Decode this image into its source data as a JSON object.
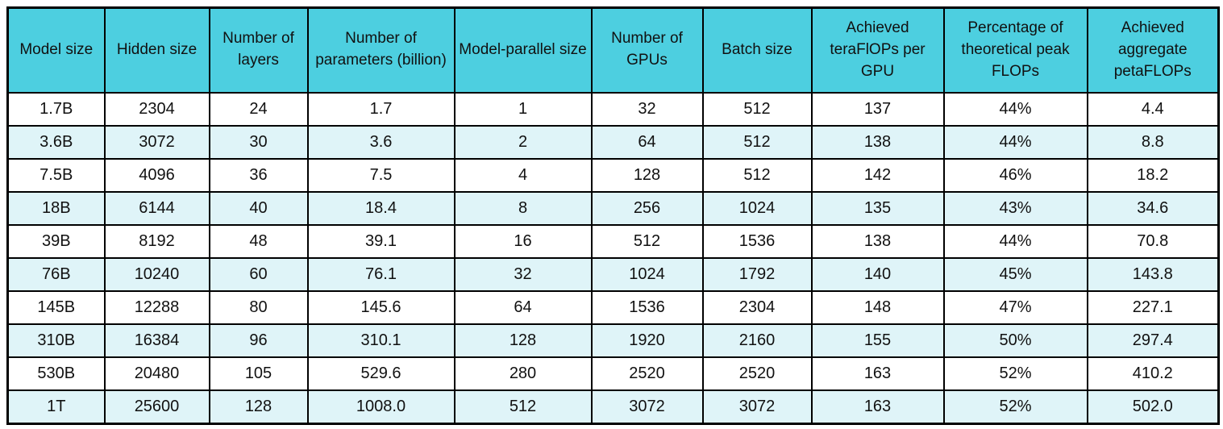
{
  "colors": {
    "header_bg": "#4DCFE0",
    "stripe_bg": "#DFF4F8",
    "row_bg": "#FFFFFF",
    "border": "#000000",
    "text": "#111111"
  },
  "chart_data": {
    "type": "table",
    "title": "",
    "columns": [
      "Model size",
      "Hidden size",
      "Number of layers",
      "Number of parameters (billion)",
      "Model-parallel size",
      "Number of GPUs",
      "Batch size",
      "Achieved teraFlOPs per GPU",
      "Percentage of theoretical peak FLOPs",
      "Achieved aggregate petaFLOPs"
    ],
    "rows": [
      [
        "1.7B",
        "2304",
        "24",
        "1.7",
        "1",
        "32",
        "512",
        "137",
        "44%",
        "4.4"
      ],
      [
        "3.6B",
        "3072",
        "30",
        "3.6",
        "2",
        "64",
        "512",
        "138",
        "44%",
        "8.8"
      ],
      [
        "7.5B",
        "4096",
        "36",
        "7.5",
        "4",
        "128",
        "512",
        "142",
        "46%",
        "18.2"
      ],
      [
        "18B",
        "6144",
        "40",
        "18.4",
        "8",
        "256",
        "1024",
        "135",
        "43%",
        "34.6"
      ],
      [
        "39B",
        "8192",
        "48",
        "39.1",
        "16",
        "512",
        "1536",
        "138",
        "44%",
        "70.8"
      ],
      [
        "76B",
        "10240",
        "60",
        "76.1",
        "32",
        "1024",
        "1792",
        "140",
        "45%",
        "143.8"
      ],
      [
        "145B",
        "12288",
        "80",
        "145.6",
        "64",
        "1536",
        "2304",
        "148",
        "47%",
        "227.1"
      ],
      [
        "310B",
        "16384",
        "96",
        "310.1",
        "128",
        "1920",
        "2160",
        "155",
        "50%",
        "297.4"
      ],
      [
        "530B",
        "20480",
        "105",
        "529.6",
        "280",
        "2520",
        "2520",
        "163",
        "52%",
        "410.2"
      ],
      [
        "1T",
        "25600",
        "128",
        "1008.0",
        "512",
        "3072",
        "3072",
        "163",
        "52%",
        "502.0"
      ]
    ],
    "layout_hints": {
      "striped_rows": "even data rows (2nd, 4th, ...) are pale cyan",
      "header_position": "top",
      "grid": "all cell borders visible, black"
    }
  }
}
